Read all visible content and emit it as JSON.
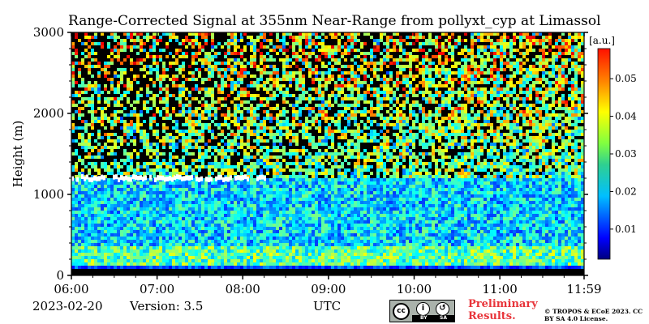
{
  "header": {
    "title": "Range-Corrected Signal at 355nm Near-Range from pollyxt_cyp at Limassol"
  },
  "footer": {
    "date": "2023-02-20",
    "version": "Version: 3.5",
    "preliminary": "Preliminary Results.",
    "copyright": "© TROPOS & ECoE 2023. CC BY SA 4.0 License.",
    "license": {
      "cc": "cc",
      "by": "BY",
      "sa": "SA"
    }
  },
  "chart_data": {
    "type": "heatmap",
    "title": "Range-Corrected Signal at 355nm Near-Range from pollyxt_cyp at Limassol",
    "xlabel": "UTC",
    "ylabel": "Height (m)",
    "xlim": [
      "06:00",
      "11:59"
    ],
    "ylim": [
      0,
      3000
    ],
    "x_ticks": [
      "06:00",
      "07:00",
      "08:00",
      "09:00",
      "10:00",
      "11:00",
      "11:59"
    ],
    "y_ticks": [
      0,
      1000,
      2000,
      3000
    ],
    "colorbar": {
      "label": "[a.u.]",
      "range": [
        0.002,
        0.058
      ],
      "ticks": [
        0.01,
        0.02,
        0.03,
        0.04,
        0.05
      ],
      "colormap": "jet"
    },
    "features": [
      {
        "name": "cloud layer (saturated)",
        "start": "06:00",
        "end": "08:15",
        "height_m": [
          1150,
          1250
        ]
      },
      {
        "name": "boundary layer",
        "start": "06:00",
        "end": "11:59",
        "height_m": [
          100,
          1200
        ],
        "typical_value": 0.02
      },
      {
        "name": "no-signal zone",
        "start": "06:00",
        "end": "11:59",
        "height_m": [
          0,
          80
        ]
      }
    ]
  },
  "colors": {
    "background": "#ffffff",
    "preliminary_text": "#e8343a",
    "no_data": "#000000"
  }
}
